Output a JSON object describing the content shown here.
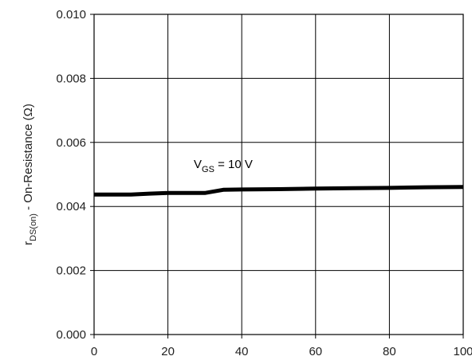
{
  "chart_data": {
    "type": "line",
    "title": "",
    "xlabel": "",
    "ylabel": {
      "main": "r",
      "subscript": "DS(on)",
      "rest": " - On-Resistance (Ω)"
    },
    "xlim": [
      0,
      100
    ],
    "ylim": [
      0.0,
      0.01
    ],
    "x_ticks": [
      "0",
      "20",
      "40",
      "60",
      "80",
      "100"
    ],
    "y_ticks": [
      "0.000",
      "0.002",
      "0.004",
      "0.006",
      "0.008",
      "0.010"
    ],
    "grid": true,
    "series": [
      {
        "x": [
          0,
          10,
          15,
          20,
          30,
          35,
          40,
          50,
          60,
          70,
          80,
          90,
          100
        ],
        "values": [
          0.00437,
          0.00437,
          0.0044,
          0.00442,
          0.00442,
          0.00452,
          0.00453,
          0.00454,
          0.00456,
          0.00457,
          0.00458,
          0.0046,
          0.00461
        ]
      }
    ],
    "annotation": {
      "main": "V",
      "subscript": "GS",
      "rest": " = 10 V",
      "x": 27,
      "y": 0.0052
    }
  }
}
